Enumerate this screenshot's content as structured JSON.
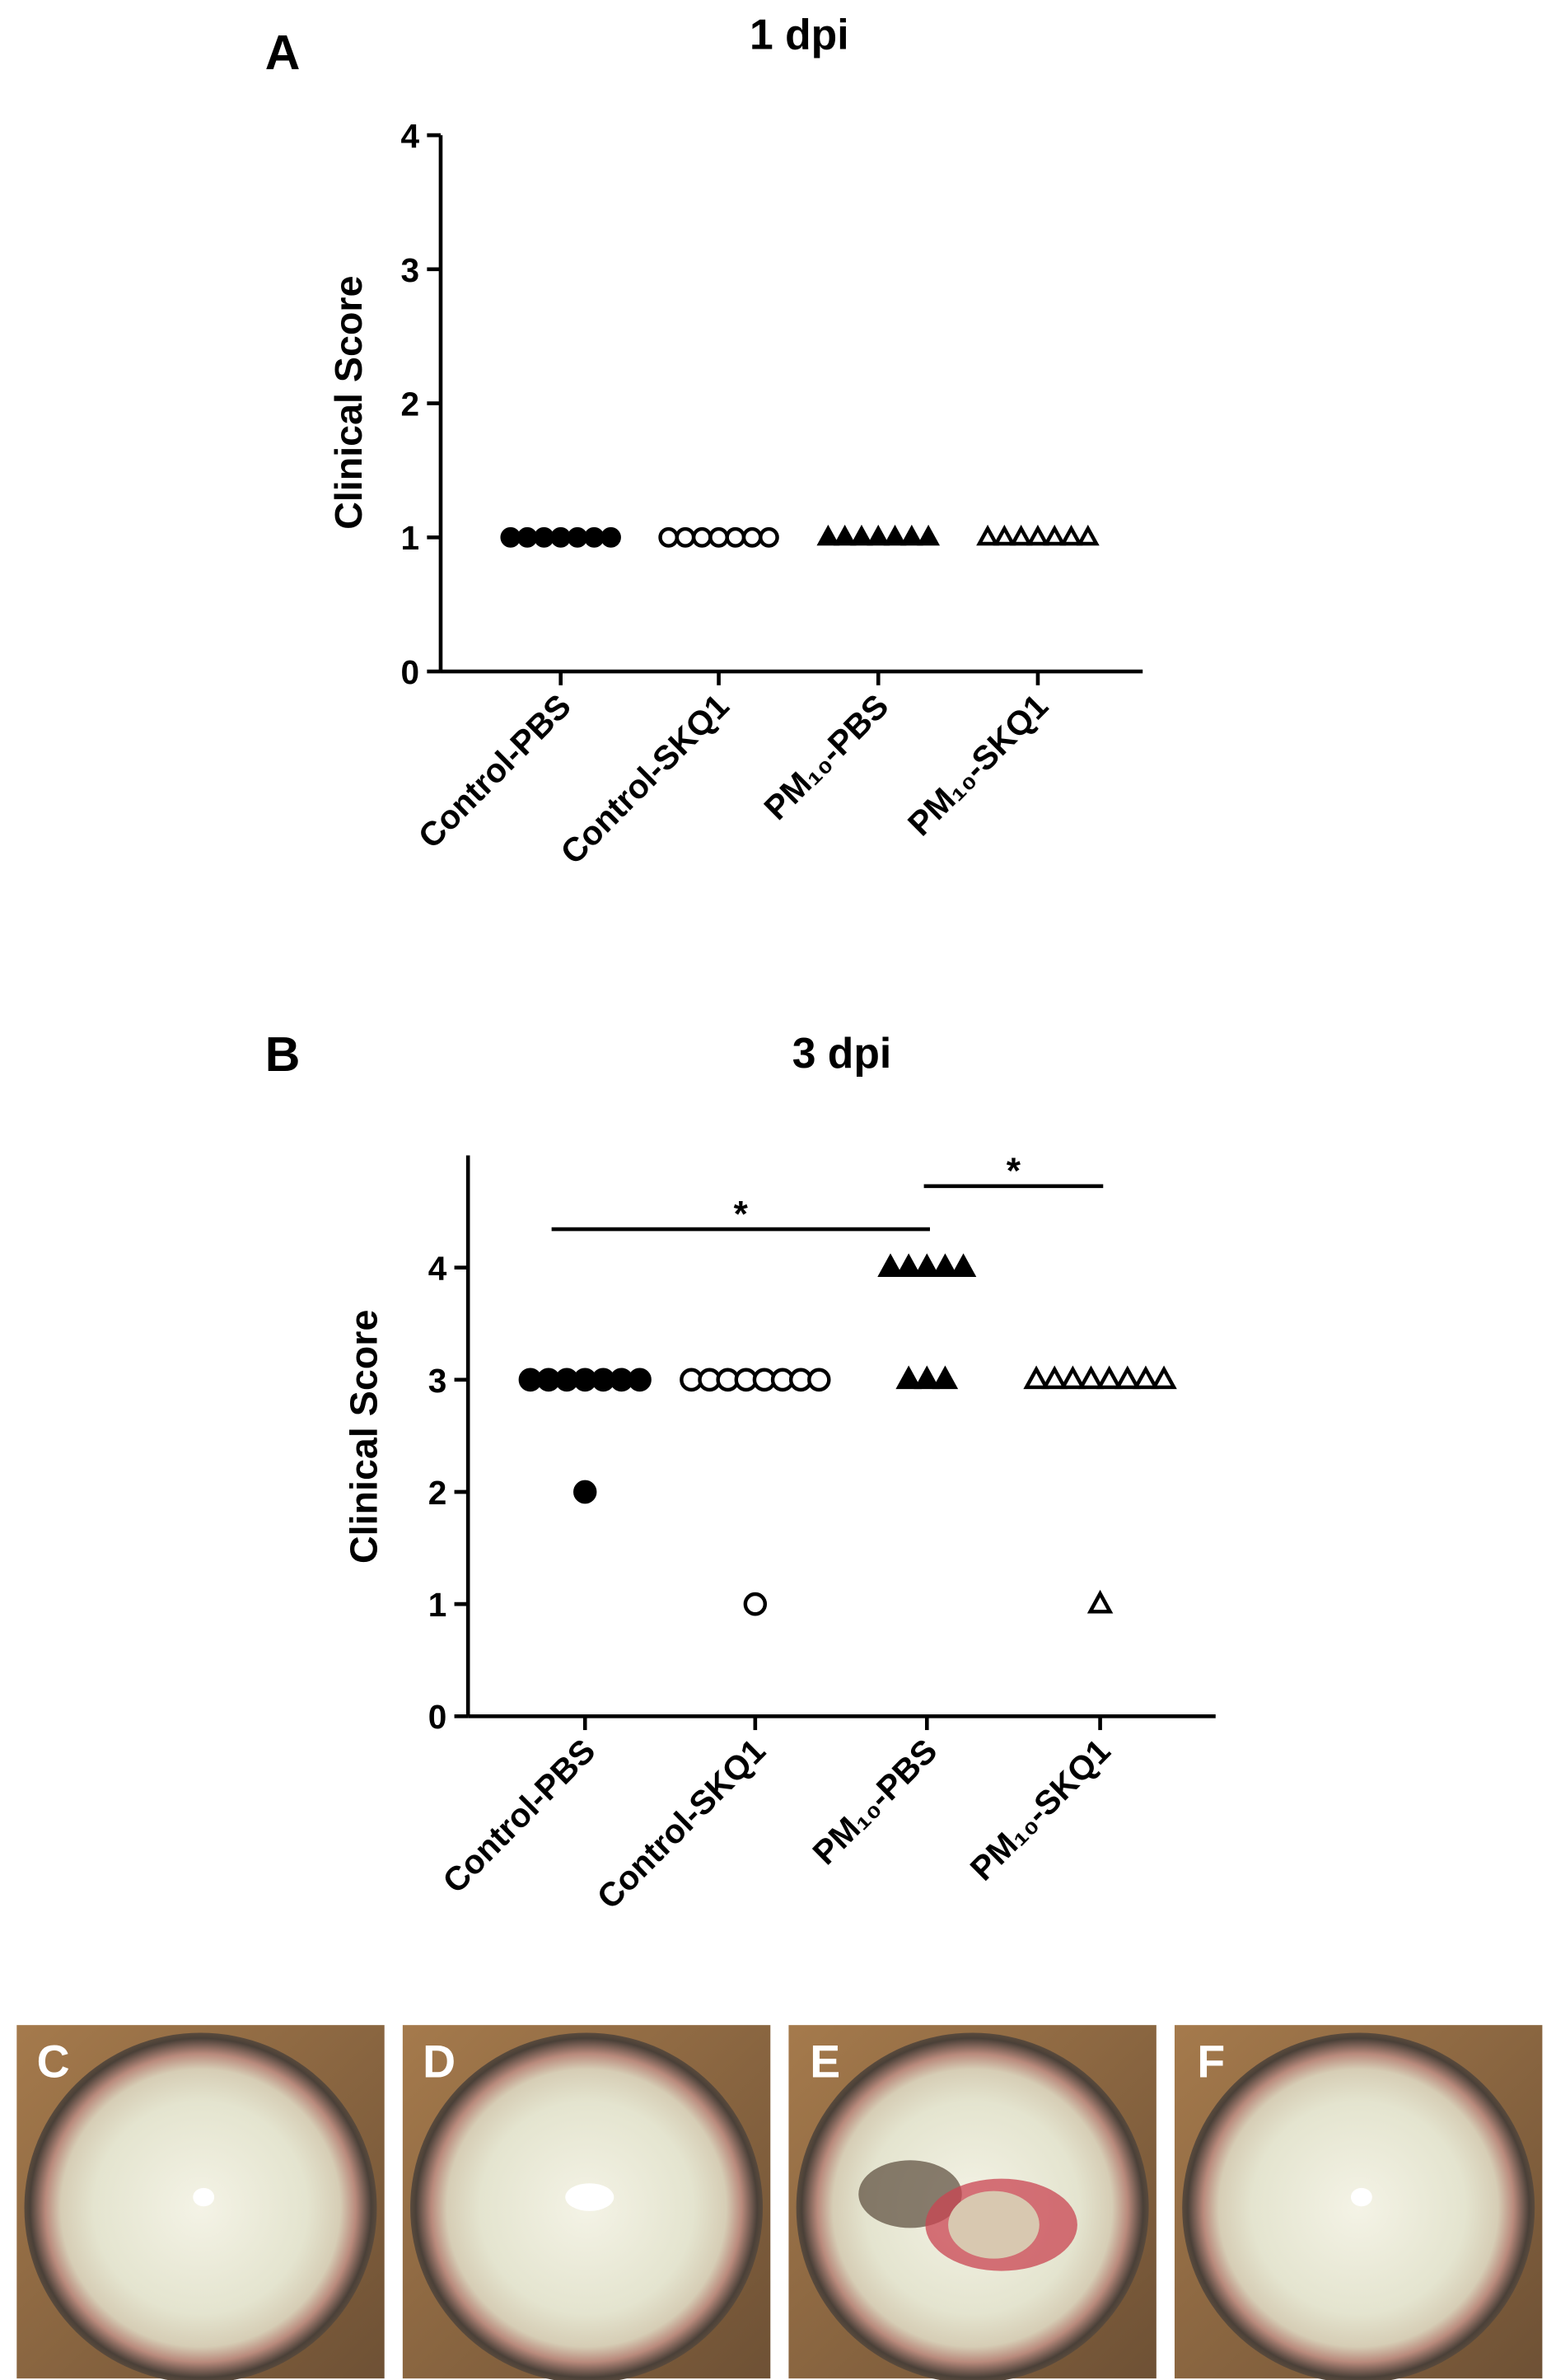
{
  "chart_data": [
    {
      "type": "scatter",
      "panel": "A",
      "title": "1 dpi",
      "y_label": "Clinical Score",
      "categories": [
        "Control-PBS",
        "Control-SKQ1",
        "PM₁₀-PBS",
        "PM₁₀-SKQ1"
      ],
      "markers": [
        "filled-circle",
        "open-circle",
        "filled-triangle",
        "open-triangle"
      ],
      "values": [
        [
          1,
          1,
          1,
          1,
          1,
          1,
          1
        ],
        [
          1,
          1,
          1,
          1,
          1,
          1,
          1
        ],
        [
          1,
          1,
          1,
          1,
          1,
          1,
          1
        ],
        [
          1,
          1,
          1,
          1,
          1,
          1,
          1
        ]
      ],
      "ylim": [
        0,
        4
      ],
      "yticks": [
        0,
        1,
        2,
        3,
        4
      ]
    },
    {
      "type": "scatter",
      "panel": "B",
      "title": "3 dpi",
      "y_label": "Clinical Score",
      "categories": [
        "Control-PBS",
        "Control-SKQ1",
        "PM₁₀-PBS",
        "PM₁₀-SKQ1"
      ],
      "markers": [
        "filled-circle",
        "open-circle",
        "filled-triangle",
        "open-triangle"
      ],
      "values": [
        [
          3,
          3,
          3,
          3,
          3,
          3,
          3,
          2
        ],
        [
          3,
          3,
          3,
          3,
          3,
          3,
          3,
          3,
          1
        ],
        [
          4,
          4,
          4,
          4,
          4,
          3,
          3,
          3
        ],
        [
          3,
          3,
          3,
          3,
          3,
          3,
          3,
          3,
          1
        ]
      ],
      "ylim": [
        0,
        5
      ],
      "yticks": [
        0,
        1,
        2,
        3,
        4
      ],
      "annotations": [
        {
          "text": "*",
          "groups": [
            "Control-PBS",
            "PM₁₀-PBS"
          ]
        },
        {
          "text": "*",
          "groups": [
            "PM₁₀-PBS",
            "PM₁₀-SKQ1"
          ]
        }
      ]
    }
  ],
  "photos": [
    {
      "label": "C"
    },
    {
      "label": "D"
    },
    {
      "label": "E"
    },
    {
      "label": "F"
    }
  ]
}
